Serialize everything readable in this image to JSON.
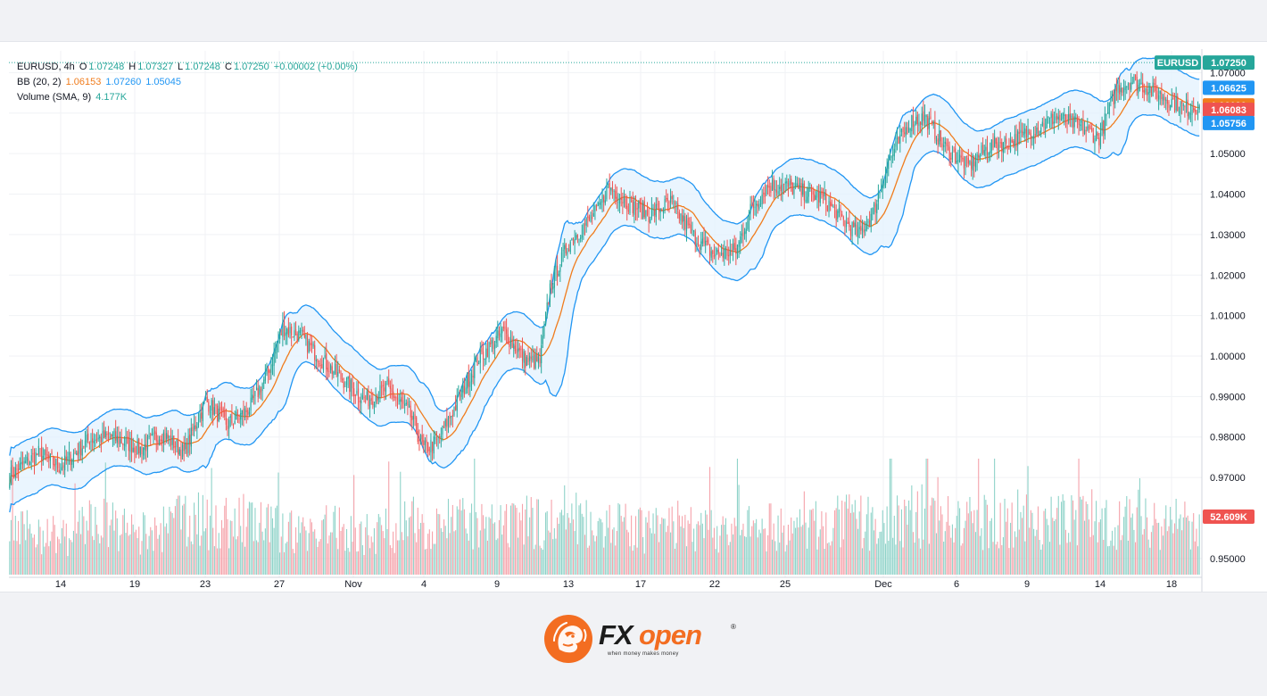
{
  "legend": {
    "symbol": "EURUSD, 4h",
    "o_label": "O",
    "o_value": "1.07248",
    "h_label": "H",
    "h_value": "1.07327",
    "l_label": "L",
    "l_value": "1.07248",
    "c_label": "C",
    "c_value": "1.07250",
    "change": "+0.00002 (+0.00%)",
    "bb_label": "BB (20, 2)",
    "bb_basis": "1.06153",
    "bb_upper": "1.07260",
    "bb_lower": "1.05045",
    "vol_label": "Volume (SMA, 9)",
    "vol_value": "4.177K"
  },
  "price_tags": {
    "symbol_tag": "EURUSD",
    "last": "1.07250",
    "upper": "1.06625",
    "basis": "1.06190",
    "low": "1.06083",
    "lower": "1.05756",
    "volume": "52.609K"
  },
  "logo": {
    "brand_fx": "FX",
    "brand_open": "open",
    "registered": "®",
    "tagline": "when money makes money"
  },
  "colors": {
    "up": "#26a69a",
    "down": "#ef5350",
    "vol_up": "#8fd3c9",
    "vol_down": "#f5a3ab",
    "band": "#2196f3",
    "band_fill": "#e3f2fd",
    "basis": "#f07c1d",
    "brand_orange": "#f36d21"
  },
  "chart_data": {
    "type": "candlestick",
    "symbol": "EURUSD",
    "timeframe": "4h",
    "ylim": [
      0.946,
      1.0745
    ],
    "y_ticks": [
      "1.07000",
      "1.06000",
      "1.05000",
      "1.04000",
      "1.03000",
      "1.02000",
      "1.01000",
      "1.00000",
      "0.99000",
      "0.98000",
      "0.97000",
      "0.95000"
    ],
    "x_ticks": [
      "14",
      "19",
      "23",
      "27",
      "Nov",
      "4",
      "9",
      "13",
      "17",
      "22",
      "25",
      "Dec",
      "6",
      "9",
      "14",
      "18"
    ],
    "close_anchors": [
      [
        0,
        0.9705
      ],
      [
        20,
        0.976
      ],
      [
        35,
        0.9725
      ],
      [
        55,
        0.9795
      ],
      [
        70,
        0.98
      ],
      [
        90,
        0.977
      ],
      [
        105,
        0.981
      ],
      [
        120,
        0.976
      ],
      [
        135,
        0.989
      ],
      [
        150,
        0.983
      ],
      [
        165,
        0.987
      ],
      [
        178,
        0.996
      ],
      [
        188,
        1.007
      ],
      [
        200,
        1.005
      ],
      [
        215,
        0.999
      ],
      [
        230,
        0.994
      ],
      [
        245,
        0.989
      ],
      [
        260,
        0.992
      ],
      [
        275,
        0.986
      ],
      [
        285,
        0.977
      ],
      [
        295,
        0.979
      ],
      [
        310,
        0.99
      ],
      [
        322,
        0.999
      ],
      [
        340,
        1.006
      ],
      [
        355,
        0.999
      ],
      [
        365,
        0.9985
      ],
      [
        372,
        1.017
      ],
      [
        385,
        1.028
      ],
      [
        395,
        1.032
      ],
      [
        405,
        1.036
      ],
      [
        412,
        1.042
      ],
      [
        425,
        1.038
      ],
      [
        440,
        1.035
      ],
      [
        455,
        1.038
      ],
      [
        470,
        1.03
      ],
      [
        485,
        1.025
      ],
      [
        500,
        1.026
      ],
      [
        510,
        1.036
      ],
      [
        522,
        1.042
      ],
      [
        535,
        1.042
      ],
      [
        550,
        1.04
      ],
      [
        560,
        1.039
      ],
      [
        575,
        1.033
      ],
      [
        585,
        1.03
      ],
      [
        595,
        1.036
      ],
      [
        605,
        1.048
      ],
      [
        620,
        1.058
      ],
      [
        630,
        1.059
      ],
      [
        645,
        1.051
      ],
      [
        660,
        1.047
      ],
      [
        675,
        1.052
      ],
      [
        690,
        1.053
      ],
      [
        705,
        1.056
      ],
      [
        720,
        1.059
      ],
      [
        735,
        1.057
      ],
      [
        750,
        1.054
      ],
      [
        762,
        1.066
      ],
      [
        772,
        1.068
      ],
      [
        785,
        1.066
      ],
      [
        800,
        1.063
      ],
      [
        810,
        1.061
      ],
      [
        819,
        1.0619
      ]
    ],
    "volume_anchors": [
      [
        0,
        3.0
      ],
      [
        20,
        3.5
      ],
      [
        40,
        2.8
      ],
      [
        55,
        4.2
      ],
      [
        80,
        3.4
      ],
      [
        100,
        3.0
      ],
      [
        120,
        4.6
      ],
      [
        140,
        3.8
      ],
      [
        160,
        4.2
      ],
      [
        180,
        3.6
      ],
      [
        200,
        3.3
      ],
      [
        220,
        3.7
      ],
      [
        240,
        3.1
      ],
      [
        260,
        3.5
      ],
      [
        280,
        4.0
      ],
      [
        300,
        4.3
      ],
      [
        320,
        3.7
      ],
      [
        340,
        3.5
      ],
      [
        360,
        4.2
      ],
      [
        380,
        3.9
      ],
      [
        400,
        4.4
      ],
      [
        420,
        3.7
      ],
      [
        440,
        3.4
      ],
      [
        460,
        3.9
      ],
      [
        480,
        3.3
      ],
      [
        500,
        3.5
      ],
      [
        520,
        3.7
      ],
      [
        540,
        3.4
      ],
      [
        560,
        3.9
      ],
      [
        580,
        4.1
      ],
      [
        600,
        3.9
      ],
      [
        620,
        4.5
      ],
      [
        640,
        4.2
      ],
      [
        660,
        3.8
      ],
      [
        680,
        4.3
      ],
      [
        700,
        4.4
      ],
      [
        720,
        4.0
      ],
      [
        740,
        4.7
      ],
      [
        760,
        4.1
      ],
      [
        780,
        4.4
      ],
      [
        800,
        3.9
      ],
      [
        819,
        3.8
      ]
    ],
    "volume_axis": {
      "label": "52.609K",
      "max_k": 8.8
    },
    "bollinger": {
      "period": 20,
      "stddev": 2
    },
    "last_close": 1.0725,
    "last_markers": {
      "upper": 1.06625,
      "basis": 1.0619,
      "low": 1.06083,
      "lower": 1.05756
    }
  }
}
